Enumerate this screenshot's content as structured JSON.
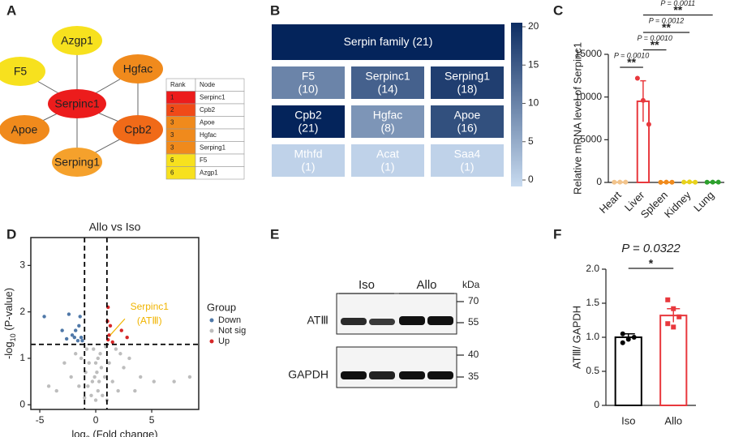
{
  "panel_labels": [
    "A",
    "B",
    "C",
    "D",
    "E",
    "F"
  ],
  "network": {
    "nodes": [
      {
        "label": "Azgp1",
        "color": "#f7e11e"
      },
      {
        "label": "F5",
        "color": "#f7e11e"
      },
      {
        "label": "Hgfac",
        "color": "#f08a1c"
      },
      {
        "label": "Serpinc1",
        "color": "#ec1c1c"
      },
      {
        "label": "Apoe",
        "color": "#f08a1c"
      },
      {
        "label": "Cpb2",
        "color": "#f06a18"
      },
      {
        "label": "Serping1",
        "color": "#f5a12c"
      }
    ],
    "edges": [
      [
        3,
        0
      ],
      [
        3,
        1
      ],
      [
        3,
        2
      ],
      [
        3,
        4
      ],
      [
        3,
        5
      ],
      [
        3,
        6
      ],
      [
        5,
        2
      ],
      [
        5,
        6
      ]
    ]
  },
  "rank_table": {
    "header": [
      "Rank",
      "Node"
    ],
    "rows": [
      [
        "1",
        "Serpinc1"
      ],
      [
        "2",
        "Cpb2"
      ],
      [
        "3",
        "Apoe"
      ],
      [
        "3",
        "Hgfac"
      ],
      [
        "3",
        "Serping1"
      ],
      [
        "6",
        "F5"
      ],
      [
        "6",
        "Azgp1"
      ]
    ],
    "colors": [
      "#ec1c1c",
      "#f04a18",
      "#f08a1c",
      "#f08a1c",
      "#f08a1c",
      "#f7e11e",
      "#f7e11e"
    ]
  },
  "chart_data": [
    {
      "type": "heatmap",
      "categories": [
        "Serpin family",
        "F5",
        "Serpinc1",
        "Serping1",
        "Cpb2",
        "Hgfac",
        "Apoe",
        "Mthfd",
        "Acat",
        "Saa4"
      ],
      "values": [
        21,
        10,
        14,
        18,
        21,
        8,
        16,
        1,
        1,
        1
      ],
      "value_labels": [
        "(21)",
        "(10)",
        "(14)",
        "(18)",
        "(21)",
        "(8)",
        "(16)",
        "(1)",
        "(1)",
        "(1)"
      ],
      "zlim": [
        0,
        20
      ],
      "zticks": [
        0,
        5,
        10,
        15,
        20
      ],
      "colors": [
        "#c8dbf0",
        "#0d2d62"
      ]
    },
    {
      "type": "bar",
      "ylabel": "Relative mRNA level of Serpinc1",
      "categories": [
        "Heart",
        "Liver",
        "Spleen",
        "Kidney",
        "Lung"
      ],
      "values": [
        30,
        9500,
        20,
        40,
        30
      ],
      "errors": [
        20,
        2400,
        10,
        20,
        10
      ],
      "points": [
        [
          20,
          40,
          30
        ],
        [
          12200,
          9600,
          6800
        ],
        [
          10,
          30,
          20
        ],
        [
          40,
          60,
          20
        ],
        [
          20,
          40,
          30
        ]
      ],
      "colors": [
        "#f2c48c",
        "#e8383d",
        "#f08a1c",
        "#e8d21c",
        "#2ca02c"
      ],
      "ylim": [
        0,
        15000
      ],
      "yticks": [
        0,
        5000,
        10000,
        15000
      ],
      "annotations": [
        {
          "pair": [
            0,
            1
          ],
          "p": "P = 0.0010",
          "stars": "**"
        },
        {
          "pair": [
            1,
            2
          ],
          "p": "P = 0.0010",
          "stars": "**"
        },
        {
          "pair": [
            1,
            3
          ],
          "p": "P = 0.0012",
          "stars": "**"
        },
        {
          "pair": [
            1,
            4
          ],
          "p": "P = 0.0011",
          "stars": "**"
        }
      ]
    },
    {
      "type": "scatter",
      "title": "Allo vs Iso",
      "xlabel": {
        "pre": "log",
        "sub": "2",
        "post": " (Fold change)"
      },
      "ylabel": {
        "pre": "-log",
        "sub": "10",
        "post": " (P-value)"
      },
      "series": [
        {
          "name": "Down",
          "color": "#4f78a8",
          "x": [
            -4.6,
            -2.4,
            -1.8,
            -1.3,
            -1.9,
            -1.5,
            -2.1,
            -1.2,
            -1.6,
            -2.6,
            -1.4,
            -3.0
          ],
          "y": [
            1.9,
            1.95,
            1.6,
            1.45,
            1.45,
            1.7,
            1.5,
            1.38,
            1.38,
            1.42,
            1.9,
            1.6
          ]
        },
        {
          "name": "Not sig",
          "color": "#bdbdbd",
          "x": [
            0,
            0.2,
            -0.3,
            0.5,
            -0.6,
            0.4,
            -0.2,
            0.8,
            -0.9,
            1.2,
            -1.3,
            1.8,
            -1.8,
            2.5,
            -2.2,
            3.0,
            -2.8,
            0.1,
            -0.4,
            0.6,
            0.3,
            -0.7,
            1.5,
            -1.5,
            2.0,
            4.0,
            5.2,
            7.0,
            8.4,
            -4.2,
            0.9,
            -0.8,
            0.0,
            0.2,
            -0.1,
            3.5,
            -3.5,
            1.0,
            -1.0,
            2.2
          ],
          "y": [
            0.1,
            0.3,
            0.5,
            0.8,
            0.9,
            1.1,
            1.2,
            0.6,
            0.7,
            0.9,
            1.0,
            1.2,
            1.1,
            0.8,
            0.6,
            1.0,
            0.9,
            0.7,
            0.2,
            0.2,
            0.5,
            0.4,
            0.5,
            0.4,
            0.3,
            0.6,
            0.5,
            0.5,
            0.6,
            0.4,
            1.25,
            1.2,
            0.9,
            1.0,
            0.6,
            0.3,
            0.3,
            0.1,
            0.15,
            1.1
          ]
        },
        {
          "name": "Up",
          "color": "#d62728",
          "x": [
            1.1,
            1.05,
            1.2,
            2.3,
            1.5,
            2.8,
            1.1,
            1.3
          ],
          "y": [
            2.1,
            1.8,
            1.5,
            1.6,
            1.35,
            1.45,
            1.4,
            1.7
          ]
        }
      ],
      "xlim": [
        -5.8,
        9.2
      ],
      "xticks": [
        -5,
        0,
        5
      ],
      "ylim": [
        -0.1,
        3.6
      ],
      "yticks": [
        0,
        1,
        2,
        3
      ],
      "thresholds": {
        "x": [
          -1,
          1
        ],
        "y": 1.3
      },
      "legend_title": "Group",
      "legend": "right",
      "annotation": {
        "text": "Serpinc1",
        "subtext": "(ATⅢ)",
        "color": "#f0b400"
      }
    },
    {
      "type": "bar",
      "ylabel": "ATⅢ/ GAPDH",
      "categories": [
        "Iso",
        "Allo"
      ],
      "values": [
        1.0,
        1.32
      ],
      "errors": [
        0.05,
        0.1
      ],
      "points": [
        [
          1.05,
          0.97,
          1.0,
          0.92
        ],
        [
          1.55,
          1.42,
          1.3,
          1.2,
          1.15
        ]
      ],
      "colors": [
        "#000000",
        "#e8383d"
      ],
      "ylim": [
        0,
        2.0
      ],
      "yticks": [
        0,
        0.5,
        {
          "value": 1.0,
          "label": "1.0"
        },
        1.5,
        {
          "value": 2.0,
          "label": "2.0"
        }
      ],
      "annotations": [
        {
          "pair": [
            0,
            1
          ],
          "p": "P = 0.0322",
          "stars": "*"
        }
      ]
    }
  ],
  "blot": {
    "groups": [
      "Iso",
      "Allo"
    ],
    "unit": "kDa",
    "markers": [
      "70",
      "55",
      "40",
      "35"
    ],
    "rows": [
      "ATⅢ",
      "GAPDH"
    ]
  }
}
